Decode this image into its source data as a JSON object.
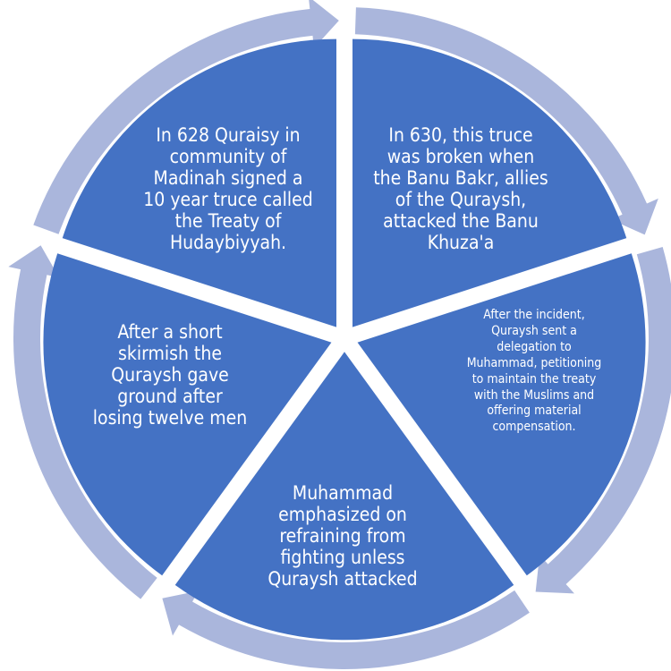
{
  "diagram": {
    "colors": {
      "segment": "#4472c4",
      "arrow": "#aab6dc",
      "background": "#ffffff",
      "text": "#ffffff"
    },
    "segments": [
      {
        "id": "treaty",
        "text": "In 628 Quraisy in\ncommunity of\nMadinah signed a\n10 year truce called\nthe Treaty of\nHudaybiyyah."
      },
      {
        "id": "broken",
        "text": "In 630, this truce\nwas broken when\nthe Banu Bakr, allies\nof the Quraysh,\nattacked the Banu\nKhuza'a"
      },
      {
        "id": "delegation",
        "text": "After the incident,\nQuraysh sent a\ndelegation to\nMuhammad, petitioning\nto maintain the treaty\nwith the Muslims and\noffering material\ncompensation."
      },
      {
        "id": "refrain",
        "text": "Muhammad\nemphasized on\nrefraining from\nfighting unless\nQuraysh attacked"
      },
      {
        "id": "skirmish",
        "text": "After a short\nskirmish the\nQuraysh gave\nground after\nlosing twelve men"
      }
    ]
  }
}
